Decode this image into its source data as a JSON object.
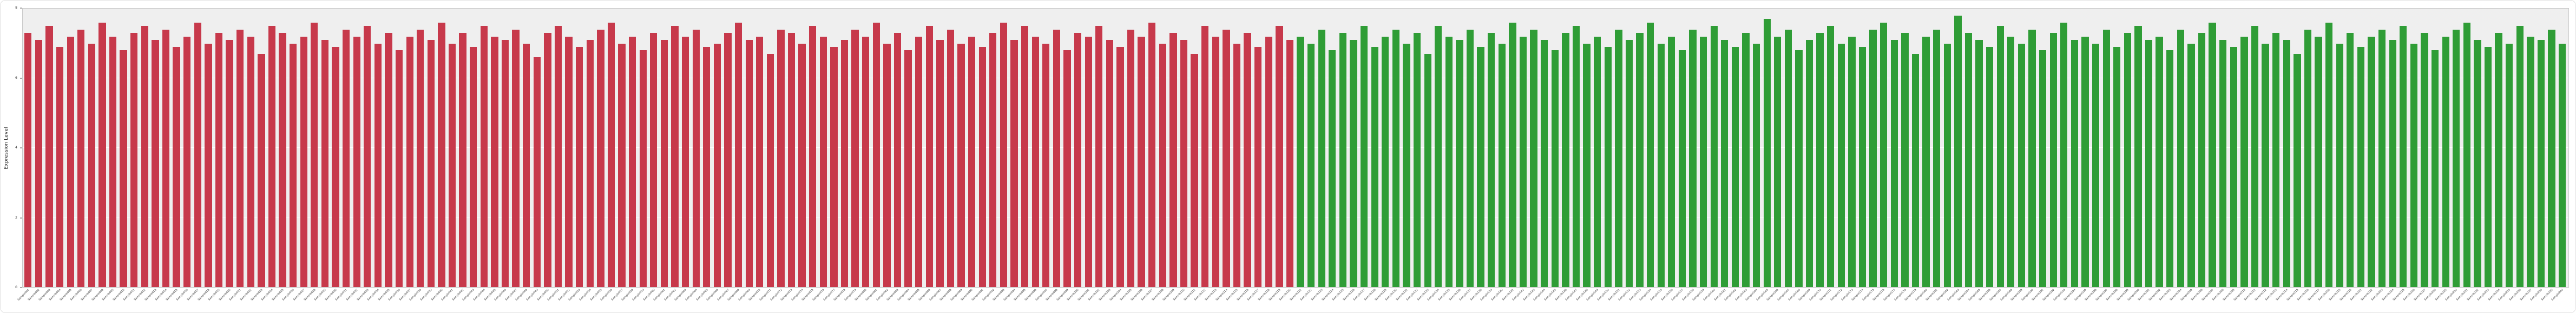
{
  "figure": {
    "background": "#ffffff",
    "plot_background": "#efefef",
    "grid_color": "#ffffff",
    "axis_color": "#555555"
  },
  "chart_data": {
    "type": "bar",
    "title": "",
    "xlabel": "",
    "ylabel": "Expression Level",
    "ylim": [
      0,
      8
    ],
    "yticks": [
      0,
      2,
      4,
      6,
      8
    ],
    "grid": true,
    "legend_position": "none",
    "groups": [
      {
        "color": "#c7394b",
        "start": 0,
        "count": 120
      },
      {
        "color": "#2f9d36",
        "start": 120,
        "count": 120
      }
    ],
    "categories": [
      "Sample001",
      "Sample002",
      "Sample003",
      "Sample004",
      "Sample005",
      "Sample006",
      "Sample007",
      "Sample008",
      "Sample009",
      "Sample010",
      "Sample011",
      "Sample012",
      "Sample013",
      "Sample014",
      "Sample015",
      "Sample016",
      "Sample017",
      "Sample018",
      "Sample019",
      "Sample020",
      "Sample021",
      "Sample022",
      "Sample023",
      "Sample024",
      "Sample025",
      "Sample026",
      "Sample027",
      "Sample028",
      "Sample029",
      "Sample030",
      "Sample031",
      "Sample032",
      "Sample033",
      "Sample034",
      "Sample035",
      "Sample036",
      "Sample037",
      "Sample038",
      "Sample039",
      "Sample040",
      "Sample041",
      "Sample042",
      "Sample043",
      "Sample044",
      "Sample045",
      "Sample046",
      "Sample047",
      "Sample048",
      "Sample049",
      "Sample050",
      "Sample051",
      "Sample052",
      "Sample053",
      "Sample054",
      "Sample055",
      "Sample056",
      "Sample057",
      "Sample058",
      "Sample059",
      "Sample060",
      "Sample061",
      "Sample062",
      "Sample063",
      "Sample064",
      "Sample065",
      "Sample066",
      "Sample067",
      "Sample068",
      "Sample069",
      "Sample070",
      "Sample071",
      "Sample072",
      "Sample073",
      "Sample074",
      "Sample075",
      "Sample076",
      "Sample077",
      "Sample078",
      "Sample079",
      "Sample080",
      "Sample081",
      "Sample082",
      "Sample083",
      "Sample084",
      "Sample085",
      "Sample086",
      "Sample087",
      "Sample088",
      "Sample089",
      "Sample090",
      "Sample091",
      "Sample092",
      "Sample093",
      "Sample094",
      "Sample095",
      "Sample096",
      "Sample097",
      "Sample098",
      "Sample099",
      "Sample100",
      "Sample101",
      "Sample102",
      "Sample103",
      "Sample104",
      "Sample105",
      "Sample106",
      "Sample107",
      "Sample108",
      "Sample109",
      "Sample110",
      "Sample111",
      "Sample112",
      "Sample113",
      "Sample114",
      "Sample115",
      "Sample116",
      "Sample117",
      "Sample118",
      "Sample119",
      "Sample120",
      "Sample121",
      "Sample122",
      "Sample123",
      "Sample124",
      "Sample125",
      "Sample126",
      "Sample127",
      "Sample128",
      "Sample129",
      "Sample130",
      "Sample131",
      "Sample132",
      "Sample133",
      "Sample134",
      "Sample135",
      "Sample136",
      "Sample137",
      "Sample138",
      "Sample139",
      "Sample140",
      "Sample141",
      "Sample142",
      "Sample143",
      "Sample144",
      "Sample145",
      "Sample146",
      "Sample147",
      "Sample148",
      "Sample149",
      "Sample150",
      "Sample151",
      "Sample152",
      "Sample153",
      "Sample154",
      "Sample155",
      "Sample156",
      "Sample157",
      "Sample158",
      "Sample159",
      "Sample160",
      "Sample161",
      "Sample162",
      "Sample163",
      "Sample164",
      "Sample165",
      "Sample166",
      "Sample167",
      "Sample168",
      "Sample169",
      "Sample170",
      "Sample171",
      "Sample172",
      "Sample173",
      "Sample174",
      "Sample175",
      "Sample176",
      "Sample177",
      "Sample178",
      "Sample179",
      "Sample180",
      "Sample181",
      "Sample182",
      "Sample183",
      "Sample184",
      "Sample185",
      "Sample186",
      "Sample187",
      "Sample188",
      "Sample189",
      "Sample190",
      "Sample191",
      "Sample192",
      "Sample193",
      "Sample194",
      "Sample195",
      "Sample196",
      "Sample197",
      "Sample198",
      "Sample199",
      "Sample200",
      "Sample201",
      "Sample202",
      "Sample203",
      "Sample204",
      "Sample205",
      "Sample206",
      "Sample207",
      "Sample208",
      "Sample209",
      "Sample210",
      "Sample211",
      "Sample212",
      "Sample213",
      "Sample214",
      "Sample215",
      "Sample216",
      "Sample217",
      "Sample218",
      "Sample219",
      "Sample220",
      "Sample221",
      "Sample222",
      "Sample223",
      "Sample224",
      "Sample225",
      "Sample226",
      "Sample227",
      "Sample228",
      "Sample229",
      "Sample230",
      "Sample231",
      "Sample232",
      "Sample233",
      "Sample234",
      "Sample235",
      "Sample236",
      "Sample237",
      "Sample238",
      "Sample239",
      "Sample240"
    ],
    "values": [
      7.3,
      7.1,
      7.5,
      6.9,
      7.2,
      7.4,
      7.0,
      7.6,
      7.2,
      6.8,
      7.3,
      7.5,
      7.1,
      7.4,
      6.9,
      7.2,
      7.6,
      7.0,
      7.3,
      7.1,
      7.4,
      7.2,
      6.7,
      7.5,
      7.3,
      7.0,
      7.2,
      7.6,
      7.1,
      6.9,
      7.4,
      7.2,
      7.5,
      7.0,
      7.3,
      6.8,
      7.2,
      7.4,
      7.1,
      7.6,
      7.0,
      7.3,
      6.9,
      7.5,
      7.2,
      7.1,
      7.4,
      7.0,
      6.6,
      7.3,
      7.5,
      7.2,
      6.9,
      7.1,
      7.4,
      7.6,
      7.0,
      7.2,
      6.8,
      7.3,
      7.1,
      7.5,
      7.2,
      7.4,
      6.9,
      7.0,
      7.3,
      7.6,
      7.1,
      7.2,
      6.7,
      7.4,
      7.3,
      7.0,
      7.5,
      7.2,
      6.9,
      7.1,
      7.4,
      7.2,
      7.6,
      7.0,
      7.3,
      6.8,
      7.2,
      7.5,
      7.1,
      7.4,
      7.0,
      7.2,
      6.9,
      7.3,
      7.6,
      7.1,
      7.5,
      7.2,
      7.0,
      7.4,
      6.8,
      7.3,
      7.2,
      7.5,
      7.1,
      6.9,
      7.4,
      7.2,
      7.6,
      7.0,
      7.3,
      7.1,
      6.7,
      7.5,
      7.2,
      7.4,
      7.0,
      7.3,
      6.9,
      7.2,
      7.5,
      7.1,
      7.2,
      7.0,
      7.4,
      6.8,
      7.3,
      7.1,
      7.5,
      6.9,
      7.2,
      7.4,
      7.0,
      7.3,
      6.7,
      7.5,
      7.2,
      7.1,
      7.4,
      6.9,
      7.3,
      7.0,
      7.6,
      7.2,
      7.4,
      7.1,
      6.8,
      7.3,
      7.5,
      7.0,
      7.2,
      6.9,
      7.4,
      7.1,
      7.3,
      7.6,
      7.0,
      7.2,
      6.8,
      7.4,
      7.2,
      7.5,
      7.1,
      6.9,
      7.3,
      7.0,
      7.7,
      7.2,
      7.4,
      6.8,
      7.1,
      7.3,
      7.5,
      7.0,
      7.2,
      6.9,
      7.4,
      7.6,
      7.1,
      7.3,
      6.7,
      7.2,
      7.4,
      7.0,
      7.8,
      7.3,
      7.1,
      6.9,
      7.5,
      7.2,
      7.0,
      7.4,
      6.8,
      7.3,
      7.6,
      7.1,
      7.2,
      7.0,
      7.4,
      6.9,
      7.3,
      7.5,
      7.1,
      7.2,
      6.8,
      7.4,
      7.0,
      7.3,
      7.6,
      7.1,
      6.9,
      7.2,
      7.5,
      7.0,
      7.3,
      7.1,
      6.7,
      7.4,
      7.2,
      7.6,
      7.0,
      7.3,
      6.9,
      7.2,
      7.4,
      7.1,
      7.5,
      7.0,
      7.3,
      6.8,
      7.2,
      7.4,
      7.6,
      7.1,
      6.9,
      7.3,
      7.0,
      7.5,
      7.2,
      7.1,
      7.4,
      7.0
    ]
  }
}
